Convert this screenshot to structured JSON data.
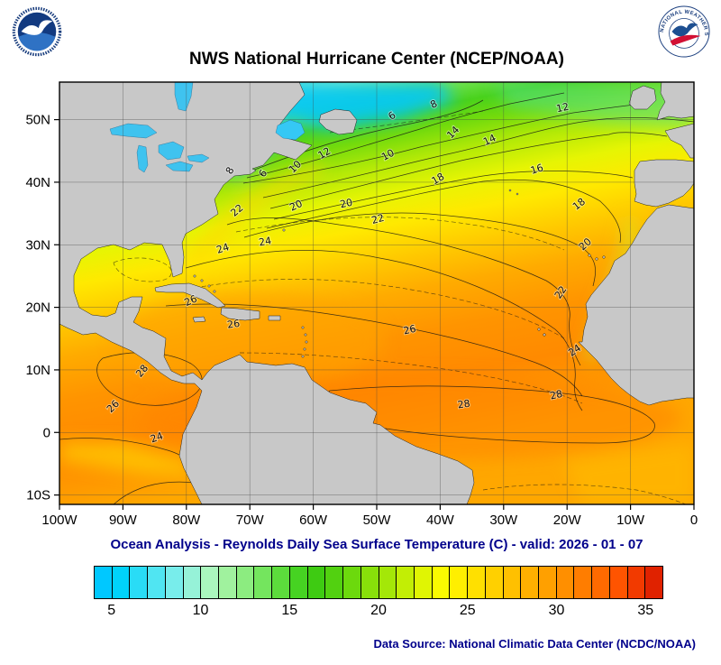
{
  "header": {
    "title": "NWS National Hurricane Center (NCEP/NOAA)",
    "noaa_logo_label": "NOAA",
    "nws_logo_label": "NATIONAL WEATHER SERVICE"
  },
  "map": {
    "lon_range": [
      -100,
      0
    ],
    "lat_range": [
      -11.5,
      56
    ],
    "lat_labels": [
      {
        "label": "50N",
        "deg": 50
      },
      {
        "label": "40N",
        "deg": 40
      },
      {
        "label": "30N",
        "deg": 30
      },
      {
        "label": "20N",
        "deg": 20
      },
      {
        "label": "10N",
        "deg": 10
      },
      {
        "label": "0",
        "deg": 0
      },
      {
        "label": "10S",
        "deg": -10
      }
    ],
    "lon_labels": [
      {
        "label": "100W",
        "deg": -100
      },
      {
        "label": "90W",
        "deg": -90
      },
      {
        "label": "80W",
        "deg": -80
      },
      {
        "label": "70W",
        "deg": -70
      },
      {
        "label": "60W",
        "deg": -60
      },
      {
        "label": "50W",
        "deg": -50
      },
      {
        "label": "40W",
        "deg": -40
      },
      {
        "label": "30W",
        "deg": -30
      },
      {
        "label": "20W",
        "deg": -20
      },
      {
        "label": "10W",
        "deg": -10
      },
      {
        "label": "0",
        "deg": 0
      }
    ],
    "contour_labels": [
      {
        "v": "6",
        "lon": -47.3,
        "lat": 50.2,
        "r": -35
      },
      {
        "v": "8",
        "lon": -40.8,
        "lat": 52.0,
        "r": -25
      },
      {
        "v": "12",
        "lon": -20.6,
        "lat": 51.4,
        "r": -12
      },
      {
        "v": "14",
        "lon": -37.6,
        "lat": 47.6,
        "r": -45
      },
      {
        "v": "14",
        "lon": -32.0,
        "lat": 46.3,
        "r": -25
      },
      {
        "v": "12",
        "lon": -58.0,
        "lat": 44.2,
        "r": -30
      },
      {
        "v": "10",
        "lon": -48.0,
        "lat": 43.9,
        "r": -28
      },
      {
        "v": "8",
        "lon": -72.7,
        "lat": 41.6,
        "r": -60
      },
      {
        "v": "6",
        "lon": -67.5,
        "lat": 41.1,
        "r": -55
      },
      {
        "v": "10",
        "lon": -62.5,
        "lat": 42.1,
        "r": -45
      },
      {
        "v": "16",
        "lon": -24.6,
        "lat": 41.6,
        "r": -18
      },
      {
        "v": "18",
        "lon": -40.1,
        "lat": 40.1,
        "r": -30
      },
      {
        "v": "18",
        "lon": -17.8,
        "lat": 36.1,
        "r": -38
      },
      {
        "v": "22",
        "lon": -71.7,
        "lat": 35.1,
        "r": -40
      },
      {
        "v": "20",
        "lon": -62.5,
        "lat": 35.8,
        "r": -25
      },
      {
        "v": "20",
        "lon": -54.7,
        "lat": 36.1,
        "r": -12
      },
      {
        "v": "22",
        "lon": -49.7,
        "lat": 33.6,
        "r": -15
      },
      {
        "v": "20",
        "lon": -16.8,
        "lat": 29.7,
        "r": -42
      },
      {
        "v": "24",
        "lon": -74.1,
        "lat": 28.9,
        "r": -18
      },
      {
        "v": "24",
        "lon": -67.5,
        "lat": 30.0,
        "r": -10
      },
      {
        "v": "22",
        "lon": -20.6,
        "lat": 22.1,
        "r": -55
      },
      {
        "v": "26",
        "lon": -79.1,
        "lat": 20.6,
        "r": -25
      },
      {
        "v": "26",
        "lon": -72.5,
        "lat": 16.8,
        "r": -8
      },
      {
        "v": "26",
        "lon": -44.7,
        "lat": 15.9,
        "r": -12
      },
      {
        "v": "24",
        "lon": -18.5,
        "lat": 12.7,
        "r": -35
      },
      {
        "v": "28",
        "lon": -86.6,
        "lat": 9.5,
        "r": -50
      },
      {
        "v": "28",
        "lon": -36.2,
        "lat": 4.0,
        "r": -8
      },
      {
        "v": "28",
        "lon": -21.6,
        "lat": 5.5,
        "r": -12
      },
      {
        "v": "26",
        "lon": -91.2,
        "lat": 3.8,
        "r": -45
      },
      {
        "v": "24",
        "lon": -84.5,
        "lat": -1.3,
        "r": -20
      }
    ]
  },
  "caption": "Ocean Analysis - Reynolds Daily Sea Surface Temperature (C) - valid: 2026 - 01 - 07",
  "colorbar": {
    "min": 4,
    "max": 36,
    "ticks": [
      5,
      10,
      15,
      20,
      25,
      30,
      35
    ],
    "colors": [
      "#00c8ff",
      "#00d2fa",
      "#29dcf6",
      "#50e5f2",
      "#78edeb",
      "#96f2d8",
      "#aaf6bd",
      "#a0f29e",
      "#8cec80",
      "#74e55e",
      "#5cdc3c",
      "#46d322",
      "#3ecb12",
      "#52d110",
      "#6cd90d",
      "#88e00a",
      "#a4e708",
      "#c2ee05",
      "#e0f503",
      "#fafa01",
      "#ffef00",
      "#ffe000",
      "#ffd000",
      "#ffc000",
      "#ffb000",
      "#ffa000",
      "#ff8f00",
      "#ff7d00",
      "#ff6a00",
      "#ff5400",
      "#f23a00",
      "#e02200"
    ]
  },
  "footer": {
    "data_source": "Data Source: National Climatic Data Center (NCDC/NOAA)"
  },
  "chart_data": {
    "type": "heatmap",
    "title": "NWS National Hurricane Center (NCEP/NOAA)",
    "subtitle": "Ocean Analysis - Reynolds Daily Sea Surface Temperature (C) - valid: 2026 - 01 - 07",
    "variable": "Reynolds Daily Sea Surface Temperature",
    "units": "C",
    "valid_date": "2026 - 01 - 07",
    "lon_axis_ticks": [
      "100W",
      "90W",
      "80W",
      "70W",
      "60W",
      "50W",
      "40W",
      "30W",
      "20W",
      "10W",
      "0"
    ],
    "lat_axis_ticks": [
      "50N",
      "40N",
      "30N",
      "20N",
      "10N",
      "0",
      "10S"
    ],
    "contour_interval_c": 2,
    "labeled_contour_levels_c": [
      6,
      8,
      10,
      12,
      14,
      16,
      18,
      20,
      22,
      24,
      26,
      28
    ],
    "colorbar_tick_values_c": [
      5,
      10,
      15,
      20,
      25,
      30,
      35
    ],
    "colorbar_range_c": [
      4,
      36
    ],
    "source": "Data Source: National Climatic Data Center (NCDC/NOAA)"
  }
}
